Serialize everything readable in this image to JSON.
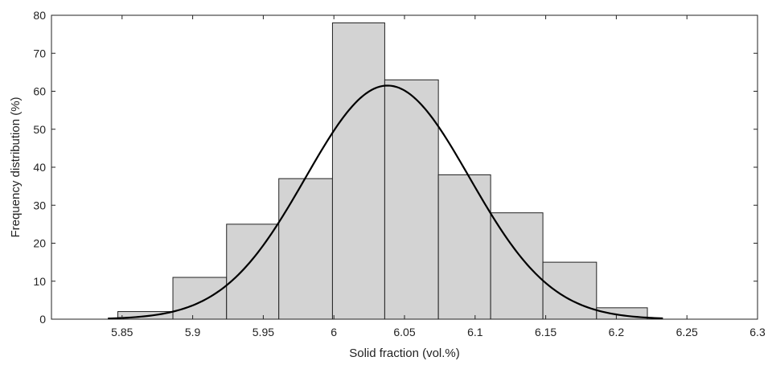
{
  "chart_data": {
    "type": "bar",
    "title": "",
    "xlabel": "Solid fraction (vol.%)",
    "ylabel": "Frequency distribution (%)",
    "xlim": [
      5.8,
      6.3
    ],
    "ylim": [
      0,
      80
    ],
    "xticks": [
      5.85,
      5.9,
      5.95,
      6,
      6.05,
      6.1,
      6.15,
      6.2,
      6.25,
      6.3
    ],
    "xtick_labels": [
      "5.85",
      "5.9",
      "5.95",
      "6",
      "6.05",
      "6.1",
      "6.15",
      "6.2",
      "6.25",
      "6.3"
    ],
    "yticks": [
      0,
      10,
      20,
      30,
      40,
      50,
      60,
      70,
      80
    ],
    "ytick_labels": [
      "0",
      "10",
      "20",
      "30",
      "40",
      "50",
      "60",
      "70",
      "80"
    ],
    "bar_edges": [
      5.847,
      5.886,
      5.924,
      5.961,
      5.999,
      6.036,
      6.074,
      6.111,
      6.148,
      6.186,
      6.222
    ],
    "values": [
      2,
      11,
      25,
      37,
      78,
      63,
      38,
      28,
      15,
      3
    ],
    "bar_color": "#d3d3d3",
    "bar_edge_color": "#222222",
    "fit_curve": {
      "type": "gaussian",
      "peak": 61.5,
      "mean": 6.038,
      "sigma": 0.058,
      "x_range": [
        5.84,
        6.233
      ],
      "color": "#000000"
    },
    "grid": false,
    "legend": "none"
  }
}
